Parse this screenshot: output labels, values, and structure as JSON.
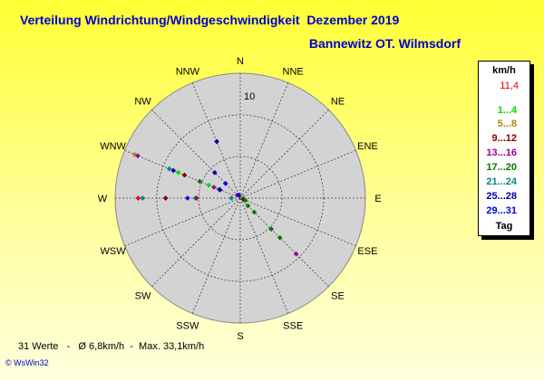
{
  "title": "Verteilung Windrichtung/Windgeschwindigkeit  Dezember 2019",
  "subtitle": "Bannewitz OT. Wilmsdorf",
  "footer": "31 Werte   -   Ø 6,8km/h  -  Max. 33,1km/h",
  "credit": "© WsWin32",
  "legend": {
    "header": "km/h",
    "max_value": "11,4",
    "classes": [
      {
        "label": "1...4",
        "color": "#00dd00"
      },
      {
        "label": "5...8",
        "color": "#aa8800"
      },
      {
        "label": "9...12",
        "color": "#880000"
      },
      {
        "label": "13...16",
        "color": "#990099"
      },
      {
        "label": "17...20",
        "color": "#007700"
      },
      {
        "label": "21...24",
        "color": "#008888"
      },
      {
        "label": "25...28",
        "color": "#000099"
      },
      {
        "label": "29...31",
        "color": "#0000ee"
      }
    ],
    "footer_label": "Tag"
  },
  "chart_data": {
    "type": "scatter",
    "projection": "polar",
    "title": "Verteilung Windrichtung/Windgeschwindigkeit  Dezember 2019",
    "subtitle": "Bannewitz OT. Wilmsdorf",
    "directions": [
      "N",
      "NNE",
      "NE",
      "ENE",
      "E",
      "ESE",
      "SE",
      "SSE",
      "S",
      "SSW",
      "SW",
      "WSW",
      "W",
      "WNW",
      "NW",
      "NNW"
    ],
    "radial_tick_label": "10",
    "radial_tick_value": 10,
    "radial_max": 11.4,
    "colors": {
      "disc": "#d3d3d3",
      "grid": "#444444",
      "labels": "#000000"
    },
    "points": [
      {
        "dir_deg": 270,
        "r": 9.3,
        "color": "#ff0000"
      },
      {
        "dir_deg": 270,
        "r": 8.9,
        "color": "#008888"
      },
      {
        "dir_deg": 270,
        "r": 6.8,
        "color": "#880000"
      },
      {
        "dir_deg": 270,
        "r": 4.8,
        "color": "#0000ee"
      },
      {
        "dir_deg": 270,
        "r": 4.1,
        "color": "#00dd00"
      },
      {
        "dir_deg": 270,
        "r": 4.0,
        "color": "#990099"
      },
      {
        "dir_deg": 270,
        "r": 0.8,
        "color": "#008888"
      },
      {
        "dir_deg": 292.5,
        "r": 10.4,
        "color": "#aa8800"
      },
      {
        "dir_deg": 292.5,
        "r": 10.1,
        "color": "#990099"
      },
      {
        "dir_deg": 292.5,
        "r": 7.0,
        "color": "#008888"
      },
      {
        "dir_deg": 292.5,
        "r": 6.6,
        "color": "#000099"
      },
      {
        "dir_deg": 292.5,
        "r": 6.1,
        "color": "#00dd00"
      },
      {
        "dir_deg": 292.5,
        "r": 5.5,
        "color": "#880000"
      },
      {
        "dir_deg": 292.5,
        "r": 4.0,
        "color": "#007700"
      },
      {
        "dir_deg": 292.5,
        "r": 3.1,
        "color": "#00dd00"
      },
      {
        "dir_deg": 292.5,
        "r": 2.6,
        "color": "#990099"
      },
      {
        "dir_deg": 292.5,
        "r": 2.1,
        "color": "#008888"
      },
      {
        "dir_deg": 292.5,
        "r": 2.0,
        "color": "#000099"
      },
      {
        "dir_deg": 315,
        "r": 3.3,
        "color": "#000099"
      },
      {
        "dir_deg": 315,
        "r": 1.9,
        "color": "#0000ee"
      },
      {
        "dir_deg": 337.5,
        "r": 5.6,
        "color": "#000099"
      },
      {
        "dir_deg": 315,
        "r": 0.4,
        "color": "#990099"
      },
      {
        "dir_deg": 337.5,
        "r": 0.3,
        "color": "#0000ee"
      },
      {
        "dir_deg": 90,
        "r": 0.2,
        "color": "#00dd00"
      },
      {
        "dir_deg": 112.5,
        "r": 0.3,
        "color": "#880000"
      },
      {
        "dir_deg": 112.5,
        "r": 0.5,
        "color": "#007700"
      },
      {
        "dir_deg": 135,
        "r": 1.0,
        "color": "#007700"
      },
      {
        "dir_deg": 135,
        "r": 1.8,
        "color": "#007700"
      },
      {
        "dir_deg": 135,
        "r": 4.0,
        "color": "#007700"
      },
      {
        "dir_deg": 135,
        "r": 5.1,
        "color": "#007700"
      },
      {
        "dir_deg": 135,
        "r": 7.2,
        "color": "#990099"
      }
    ]
  }
}
